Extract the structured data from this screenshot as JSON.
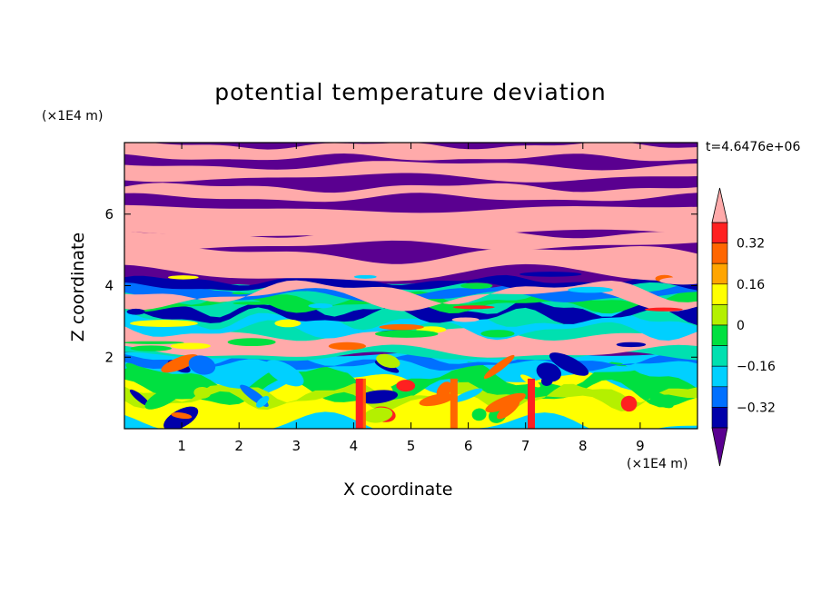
{
  "title": "potential temperature deviation",
  "time_label": "t=4.6476e+06",
  "chart_data": {
    "type": "heatmap",
    "title": "potential temperature deviation",
    "xlabel": "X coordinate",
    "ylabel": "Z coordinate",
    "x_unit": "(×1E4 m)",
    "z_unit": "(×1E4 m)",
    "xlim": [
      0,
      10
    ],
    "ylim": [
      0,
      8
    ],
    "x_ticks": [
      1,
      2,
      3,
      4,
      5,
      6,
      7,
      8,
      9
    ],
    "y_ticks": [
      2,
      4,
      6
    ],
    "colorbar": {
      "levels": [
        -0.4,
        -0.32,
        -0.24,
        -0.16,
        -0.08,
        0,
        0.08,
        0.16,
        0.24,
        0.32,
        0.4
      ],
      "tick_labels": [
        "0.32",
        "0.16",
        "0",
        "−0.16",
        "−0.32"
      ],
      "tick_values": [
        0.32,
        0.16,
        0,
        -0.16,
        -0.32
      ],
      "colors": [
        "#ffaaaa",
        "#ff2020",
        "#ff6600",
        "#ffa500",
        "#ffff00",
        "#b4f000",
        "#00e040",
        "#00e0b0",
        "#00d0ff",
        "#0070ff",
        "#0000aa",
        "#5a0090"
      ],
      "extend": "both"
    },
    "bands": [
      {
        "z": [
          7.0,
          8.0
        ],
        "dominant": "above 0.4",
        "alternating_with": "below -0.4"
      },
      {
        "z": [
          4.2,
          7.0
        ],
        "dominant": "alternating layers above 0.4 and below -0.4"
      },
      {
        "z": [
          2.0,
          4.2
        ],
        "dominant": "mixed -0.4 to 0.4 turbulence"
      },
      {
        "z": [
          0.0,
          2.0
        ],
        "dominant": "-0.16 to 0.32 eddies"
      }
    ]
  }
}
